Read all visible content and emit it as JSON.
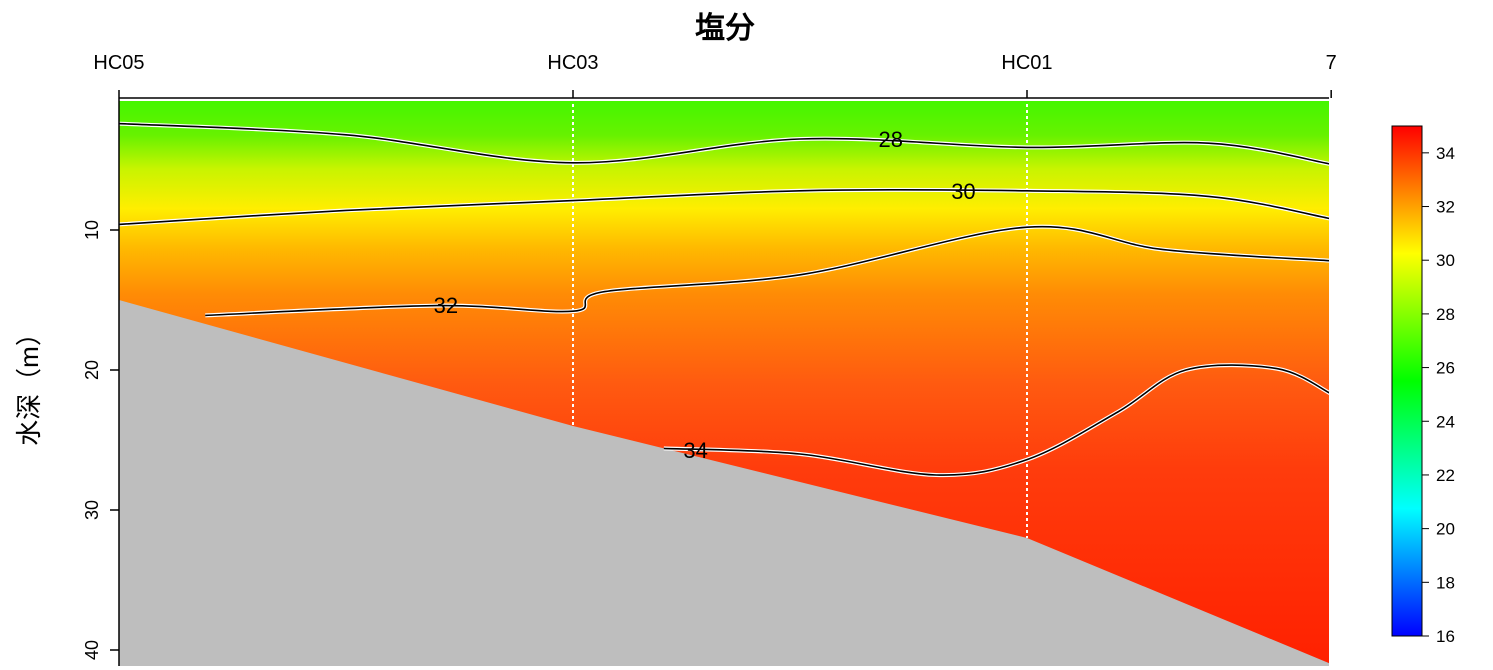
{
  "chart_data": {
    "type": "heatmap",
    "title": "塩分",
    "ylabel": "水深（m）",
    "ylim": [
      0,
      41
    ],
    "y_ticks": [
      10,
      20,
      30,
      40
    ],
    "stations": [
      "HC05",
      "HC03",
      "HC01",
      "7"
    ],
    "station_x": [
      0,
      1,
      2,
      2.67
    ],
    "bottom_depth": [
      15,
      24,
      32,
      41
    ],
    "color_scale": {
      "min": 16,
      "max": 35,
      "ticks": [
        16,
        18,
        20,
        22,
        24,
        26,
        28,
        30,
        32,
        34
      ],
      "colors": [
        "#0000ff",
        "#00ffff",
        "#00ff00",
        "#ffff00",
        "#ff0000"
      ]
    },
    "contours": [
      {
        "level": 28,
        "label": "28",
        "points": [
          [
            0,
            2.4
          ],
          [
            0.5,
            3.2
          ],
          [
            1,
            5.2
          ],
          [
            1.5,
            3.5
          ],
          [
            2,
            4.1
          ],
          [
            2.4,
            3.8
          ],
          [
            2.67,
            5.3
          ]
        ]
      },
      {
        "level": 30,
        "label": "30",
        "points": [
          [
            0,
            9.6
          ],
          [
            0.5,
            8.6
          ],
          [
            1,
            7.9
          ],
          [
            1.5,
            7.2
          ],
          [
            2,
            7.2
          ],
          [
            2.4,
            7.6
          ],
          [
            2.67,
            9.2
          ]
        ]
      },
      {
        "level": 32,
        "label": "32",
        "points": [
          [
            0.19,
            16.1
          ],
          [
            0.7,
            15.4
          ],
          [
            1,
            15.8
          ],
          [
            1.07,
            14.4
          ],
          [
            1.5,
            13.2
          ],
          [
            2,
            9.8
          ],
          [
            2.3,
            11.4
          ],
          [
            2.67,
            12.2
          ]
        ]
      },
      {
        "level": 34,
        "label": "34",
        "points": [
          [
            1.2,
            25.6
          ],
          [
            1.5,
            26
          ],
          [
            1.8,
            27.5
          ],
          [
            2,
            26.4
          ],
          [
            2.2,
            23
          ],
          [
            2.35,
            20
          ],
          [
            2.55,
            19.9
          ],
          [
            2.67,
            21.7
          ]
        ]
      }
    ],
    "land_color": "#bebebe"
  }
}
